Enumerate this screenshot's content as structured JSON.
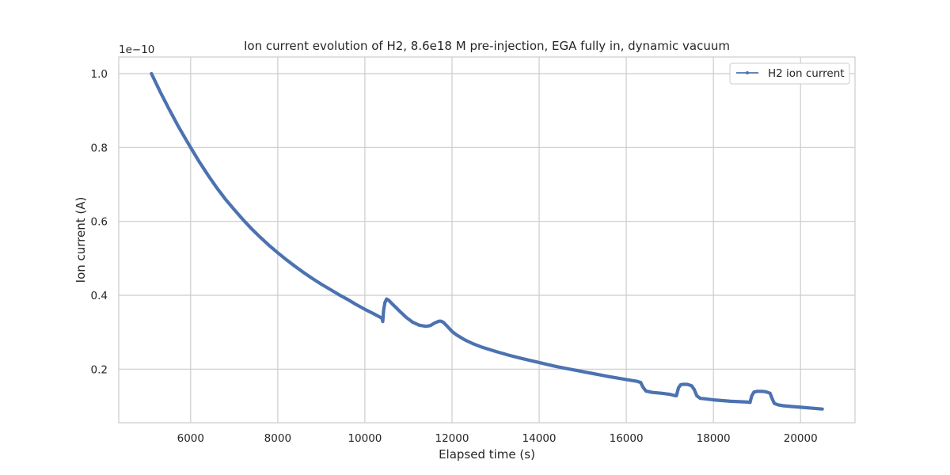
{
  "chart_data": {
    "type": "line",
    "title": "Ion current evolution of H2, 8.6e18 M pre-injection, EGA fully in, dynamic vacuum",
    "xlabel": "Elapsed time (s)",
    "ylabel": "Ion current (A)",
    "y_offset_label": "1e−10",
    "y_scale_factor": 1e-10,
    "xlim": [
      4350,
      21250
    ],
    "ylim": [
      0.055,
      1.045
    ],
    "x_ticks": [
      6000,
      8000,
      10000,
      12000,
      14000,
      16000,
      18000,
      20000
    ],
    "y_ticks": [
      0.2,
      0.4,
      0.6,
      0.8,
      1.0
    ],
    "x_tick_labels": [
      "6000",
      "8000",
      "10000",
      "12000",
      "14000",
      "16000",
      "18000",
      "20000"
    ],
    "y_tick_labels": [
      "0.2",
      "0.4",
      "0.6",
      "0.8",
      "1.0"
    ],
    "grid": true,
    "legend_position": "top-right",
    "colors": {
      "series": "#4c72b0",
      "grid": "#cccccc",
      "axes": "#cccccc"
    },
    "series": [
      {
        "name": "H2 ion current",
        "x": [
          5100,
          5300,
          5500,
          5700,
          5900,
          6000,
          6200,
          6400,
          6600,
          6800,
          7000,
          7200,
          7400,
          7600,
          7800,
          8000,
          8200,
          8400,
          8600,
          8800,
          9000,
          9200,
          9400,
          9600,
          9800,
          10000,
          10200,
          10390,
          10410,
          10430,
          10460,
          10500,
          10550,
          10650,
          10800,
          10950,
          11100,
          11250,
          11400,
          11500,
          11600,
          11700,
          11750,
          11800,
          11900,
          12000,
          12100,
          12300,
          12500,
          12700,
          13000,
          13300,
          13600,
          14000,
          14400,
          14800,
          15200,
          15600,
          16000,
          16250,
          16330,
          16380,
          16450,
          16600,
          16800,
          17000,
          17100,
          17150,
          17200,
          17250,
          17300,
          17400,
          17500,
          17560,
          17620,
          17700,
          17800,
          18000,
          18200,
          18400,
          18600,
          18790,
          18840,
          18880,
          18930,
          19000,
          19100,
          19200,
          19300,
          19350,
          19400,
          19500,
          19600,
          19800,
          20000,
          20200,
          20500
        ],
        "y": [
          1.0,
          0.951,
          0.905,
          0.861,
          0.82,
          0.8,
          0.761,
          0.725,
          0.691,
          0.66,
          0.632,
          0.605,
          0.58,
          0.557,
          0.535,
          0.515,
          0.496,
          0.478,
          0.461,
          0.445,
          0.43,
          0.416,
          0.402,
          0.389,
          0.375,
          0.362,
          0.35,
          0.338,
          0.329,
          0.36,
          0.38,
          0.39,
          0.386,
          0.374,
          0.357,
          0.34,
          0.327,
          0.319,
          0.316,
          0.318,
          0.325,
          0.33,
          0.33,
          0.327,
          0.315,
          0.302,
          0.293,
          0.279,
          0.268,
          0.259,
          0.248,
          0.238,
          0.229,
          0.218,
          0.207,
          0.198,
          0.189,
          0.18,
          0.172,
          0.167,
          0.164,
          0.152,
          0.141,
          0.137,
          0.135,
          0.132,
          0.129,
          0.128,
          0.15,
          0.158,
          0.159,
          0.159,
          0.155,
          0.145,
          0.128,
          0.121,
          0.12,
          0.117,
          0.115,
          0.113,
          0.112,
          0.111,
          0.11,
          0.128,
          0.138,
          0.14,
          0.14,
          0.139,
          0.135,
          0.12,
          0.107,
          0.103,
          0.101,
          0.099,
          0.097,
          0.095,
          0.092
        ]
      }
    ]
  }
}
